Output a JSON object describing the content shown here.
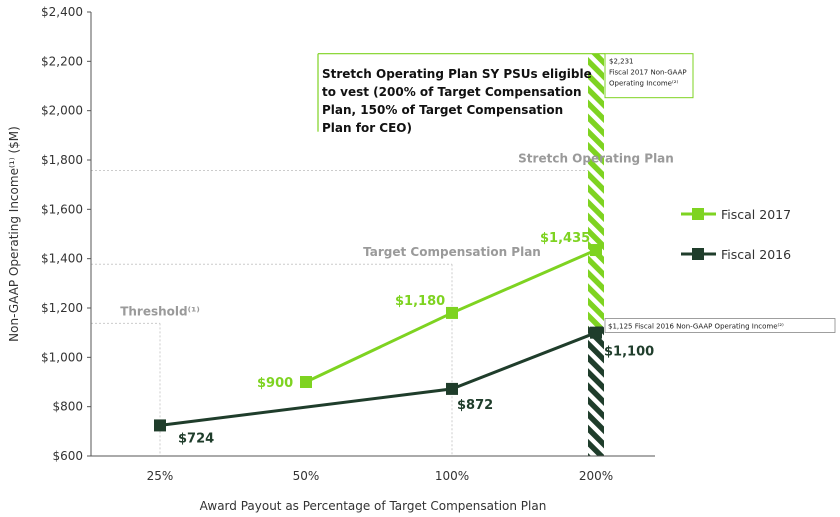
{
  "chart_data": {
    "type": "line",
    "categories": [
      "25%",
      "50%",
      "100%",
      "200%"
    ],
    "xlabel": "Award Payout as Percentage of Target Compensation Plan",
    "ylabel": "Non-GAAP Operating Income⁽¹⁾ ($M)",
    "ylim": [
      600,
      2400
    ],
    "yticks": [
      "$600",
      "$800",
      "$1,000",
      "$1,200",
      "$1,400",
      "$1,600",
      "$1,800",
      "$2,000",
      "$2,200",
      "$2,400"
    ],
    "grid": false,
    "legend_position": "right",
    "colors": {
      "fiscal2017": "#7ed321",
      "fiscal2016": "#1f3d2b",
      "stripe_light": "#7ed321",
      "stripe_dark": "#1f3d2b",
      "guide": "#cccccc"
    },
    "series": [
      {
        "name": "Fiscal 2017",
        "key": "fiscal2017",
        "x": [
          "50%",
          "100%",
          "200%"
        ],
        "values": [
          900,
          1180,
          1435
        ],
        "labels": [
          "$900",
          "$1,180",
          "$1,435"
        ]
      },
      {
        "name": "Fiscal 2016",
        "key": "fiscal2016",
        "x": [
          "25%",
          "100%",
          "200%"
        ],
        "values": [
          724,
          872,
          1100
        ],
        "labels": [
          "$724",
          "$872",
          "$1,100"
        ]
      }
    ],
    "reference_levels": [
      {
        "label": "Threshold⁽¹⁾",
        "x": "25%",
        "y": 1170
      },
      {
        "label": "Target Compensation Plan",
        "x": "100%",
        "y": 1410
      },
      {
        "label": "Stretch Operating Plan",
        "x": "200%",
        "y": 1790
      }
    ],
    "annotation": {
      "lines": [
        "Stretch Operating Plan SY PSUs eligible",
        "to vest (200% of Target Compensation",
        "Plan, 150% of Target Compensation",
        "Plan for CEO)"
      ]
    },
    "callouts": [
      {
        "lines": [
          "$2,231",
          "Fiscal 2017 Non-GAAP",
          "Operating Income⁽²⁾"
        ]
      },
      {
        "lines": [
          "$1,125 Fiscal 2016 Non-GAAP Operating Income⁽²⁾"
        ]
      }
    ],
    "bar_values": {
      "fiscal2017": 2231,
      "fiscal2016": 1125
    }
  }
}
